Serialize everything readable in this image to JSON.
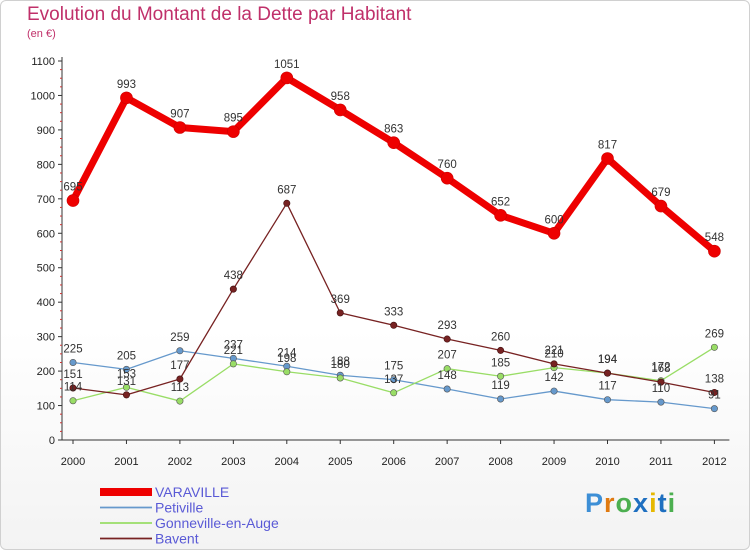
{
  "title": "Evolution du Montant de la Dette par Habitant",
  "subtitle": "(en €)",
  "logo": "Proxiti",
  "chart_data": {
    "type": "line",
    "x": [
      "2000",
      "2001",
      "2002",
      "2003",
      "2004",
      "2005",
      "2006",
      "2007",
      "2008",
      "2009",
      "2010",
      "2011",
      "2012"
    ],
    "ylim": [
      0,
      1100
    ],
    "yticks": [
      0,
      100,
      200,
      300,
      400,
      500,
      600,
      700,
      800,
      900,
      1000,
      1100
    ],
    "grid": false,
    "legend_position": "bottom-left",
    "series": [
      {
        "name": "VARAVILLE",
        "color": "#ee0000",
        "width": 7,
        "values": [
          695,
          993,
          907,
          895,
          1051,
          958,
          863,
          760,
          652,
          600,
          817,
          679,
          548
        ]
      },
      {
        "name": "Petiville",
        "color": "#6699cc",
        "width": 1.3,
        "values": [
          225,
          205,
          259,
          237,
          214,
          188,
          175,
          148,
          119,
          142,
          117,
          110,
          91
        ]
      },
      {
        "name": "Gonneville-en-Auge",
        "color": "#99dd66",
        "width": 1.3,
        "values": [
          114,
          153,
          113,
          221,
          198,
          180,
          137,
          207,
          185,
          210,
          194,
          172,
          269
        ]
      },
      {
        "name": "Bavent",
        "color": "#772222",
        "width": 1.3,
        "values": [
          151,
          131,
          177,
          438,
          687,
          369,
          333,
          293,
          260,
          221,
          194,
          168,
          138
        ]
      }
    ],
    "labels": {
      "VARAVILLE": [
        "695",
        "993",
        "907",
        "895",
        "1051",
        "958",
        "863",
        "760",
        "652",
        "600",
        "817",
        "679",
        "548"
      ],
      "Petiville": [
        "225",
        "205",
        "259",
        "237",
        "214",
        "188",
        "175",
        "148",
        "119",
        "142",
        "117",
        "110",
        "91"
      ],
      "Gonneville-en-Auge": [
        "114",
        "153",
        "113",
        "221",
        "198",
        "180",
        "137",
        "207",
        "185",
        "210",
        "194",
        "172",
        "269"
      ],
      "Bavent": [
        "151",
        "131",
        "177",
        "438",
        "687",
        "369",
        "333",
        "293",
        "260",
        "221",
        "194",
        "168",
        "138"
      ]
    }
  }
}
